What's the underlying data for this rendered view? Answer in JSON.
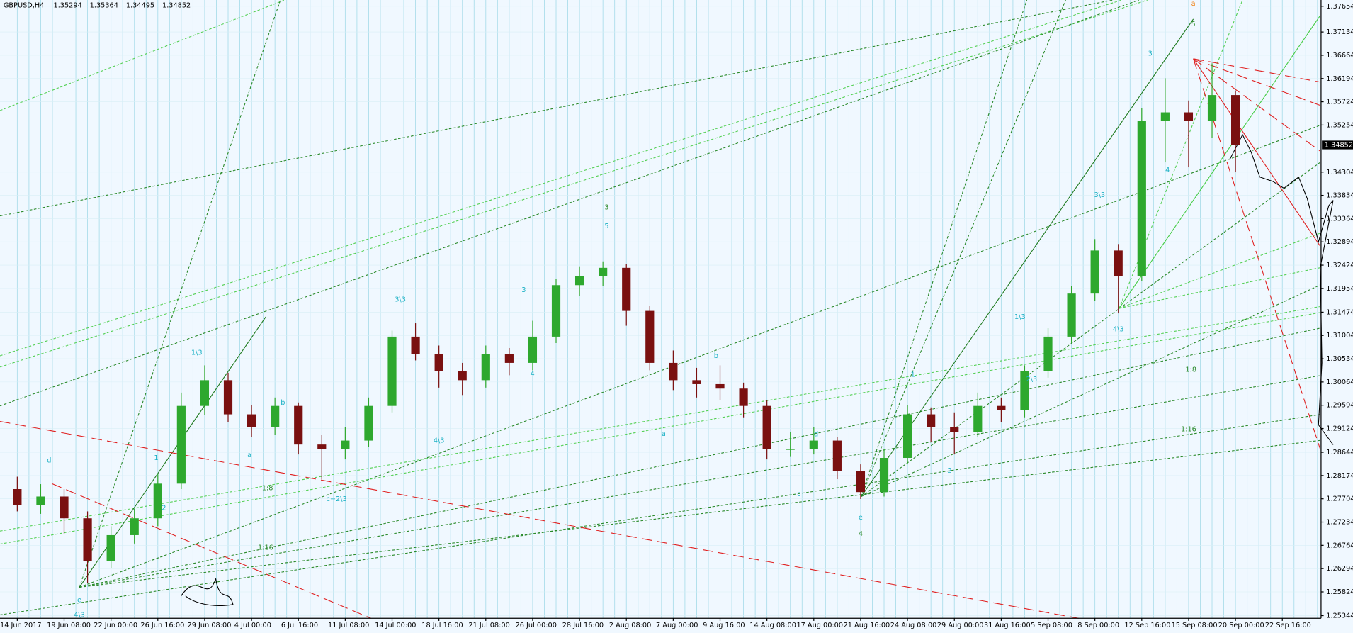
{
  "chart_data": {
    "type": "candlestick",
    "title": "GBPUSD,H4",
    "title_values": [
      1.35294,
      1.35364,
      1.34495,
      1.34852
    ],
    "current_price": 1.34852,
    "up_color": "#2ea82e",
    "down_color": "#7a1010",
    "categories": [
      "14 Jun 2017",
      "19 Jun 08:00",
      "22 Jun 00:00",
      "26 Jun 16:00",
      "29 Jun 08:00",
      "4 Jul 00:00",
      "6 Jul 16:00",
      "11 Jul 08:00",
      "14 Jul 00:00",
      "18 Jul 16:00",
      "21 Jul 08:00",
      "26 Jul 00:00",
      "28 Jul 16:00",
      "2 Aug 08:00",
      "7 Aug 00:00",
      "9 Aug 16:00",
      "14 Aug 08:00",
      "17 Aug 00:00",
      "21 Aug 16:00",
      "24 Aug 08:00",
      "29 Aug 00:00",
      "31 Aug 16:00",
      "5 Sep 08:00",
      "8 Sep 00:00",
      "12 Sep 16:00",
      "15 Sep 08:00",
      "20 Sep 00:00",
      "22 Sep 16:00"
    ],
    "ohlc": [
      [
        1.279,
        1.2815,
        1.2745,
        1.2758
      ],
      [
        1.2758,
        1.28,
        1.274,
        1.2775
      ],
      [
        1.2775,
        1.279,
        1.27,
        1.2731
      ],
      [
        1.2731,
        1.2745,
        1.26,
        1.2644
      ],
      [
        1.2644,
        1.2715,
        1.263,
        1.2697
      ],
      [
        1.2697,
        1.275,
        1.268,
        1.2731
      ],
      [
        1.2731,
        1.282,
        1.2715,
        1.2801
      ],
      [
        1.2801,
        1.2985,
        1.279,
        1.2958
      ],
      [
        1.2958,
        1.304,
        1.294,
        1.301
      ],
      [
        1.301,
        1.3025,
        1.2925,
        1.2941
      ],
      [
        1.2941,
        1.296,
        1.2895,
        1.2915
      ],
      [
        1.2915,
        1.2975,
        1.29,
        1.2958
      ],
      [
        1.2958,
        1.2965,
        1.286,
        1.288
      ],
      [
        1.288,
        1.29,
        1.281,
        1.2871
      ],
      [
        1.2871,
        1.2915,
        1.285,
        1.2888
      ],
      [
        1.2888,
        1.2975,
        1.2875,
        1.2958
      ],
      [
        1.2958,
        1.311,
        1.2945,
        1.3098
      ],
      [
        1.3098,
        1.3125,
        1.305,
        1.3063
      ],
      [
        1.3063,
        1.308,
        1.2995,
        1.3028
      ],
      [
        1.3028,
        1.3045,
        1.298,
        1.301
      ],
      [
        1.301,
        1.308,
        1.2995,
        1.3063
      ],
      [
        1.3063,
        1.3075,
        1.302,
        1.3045
      ],
      [
        1.3045,
        1.313,
        1.303,
        1.3098
      ],
      [
        1.3098,
        1.3215,
        1.3085,
        1.3202
      ],
      [
        1.3202,
        1.324,
        1.318,
        1.322
      ],
      [
        1.322,
        1.325,
        1.32,
        1.3237
      ],
      [
        1.3237,
        1.3245,
        1.312,
        1.315
      ],
      [
        1.315,
        1.316,
        1.303,
        1.3045
      ],
      [
        1.3045,
        1.307,
        1.299,
        1.301
      ],
      [
        1.301,
        1.3035,
        1.2975,
        1.3002
      ],
      [
        1.3002,
        1.304,
        1.297,
        1.2993
      ],
      [
        1.2993,
        1.3005,
        1.2935,
        1.2958
      ],
      [
        1.2958,
        1.297,
        1.285,
        1.2871
      ],
      [
        1.2871,
        1.2905,
        1.2855,
        1.2871
      ],
      [
        1.2871,
        1.2915,
        1.286,
        1.2888
      ],
      [
        1.2888,
        1.2895,
        1.281,
        1.2827
      ],
      [
        1.2827,
        1.284,
        1.277,
        1.2784
      ],
      [
        1.2784,
        1.287,
        1.2775,
        1.2853
      ],
      [
        1.2853,
        1.296,
        1.284,
        1.2941
      ],
      [
        1.2941,
        1.2955,
        1.2885,
        1.2915
      ],
      [
        1.2915,
        1.2945,
        1.286,
        1.2906
      ],
      [
        1.2906,
        1.2985,
        1.2895,
        1.2958
      ],
      [
        1.2958,
        1.2975,
        1.2925,
        1.2949
      ],
      [
        1.2949,
        1.304,
        1.2935,
        1.3028
      ],
      [
        1.3028,
        1.3115,
        1.3015,
        1.3098
      ],
      [
        1.3098,
        1.32,
        1.3085,
        1.3185
      ],
      [
        1.3185,
        1.3295,
        1.317,
        1.3272
      ],
      [
        1.3272,
        1.3285,
        1.3145,
        1.322
      ],
      [
        1.322,
        1.356,
        1.321,
        1.3534
      ],
      [
        1.3534,
        1.362,
        1.345,
        1.3551
      ],
      [
        1.3551,
        1.3575,
        1.344,
        1.3534
      ],
      [
        1.3534,
        1.365,
        1.35,
        1.3586
      ],
      [
        1.3586,
        1.3595,
        1.343,
        1.3485
      ]
    ],
    "ylim": [
      1.2529,
      1.3778
    ],
    "yticks": [
      1.37654,
      1.37134,
      1.36664,
      1.36194,
      1.35724,
      1.35254,
      1.34304,
      1.33834,
      1.33364,
      1.32894,
      1.32424,
      1.31954,
      1.31474,
      1.31004,
      1.30534,
      1.30064,
      1.29594,
      1.29124,
      1.28644,
      1.28174,
      1.27704,
      1.27234,
      1.26764,
      1.26294,
      1.25824,
      1.25344
    ],
    "grid": true,
    "annotations": [
      {
        "text": "4\\3",
        "x": 2.65,
        "y": 1.2536,
        "color": "#19b0c4"
      },
      {
        "text": "e",
        "x": 2.65,
        "y": 1.2566,
        "color": "#19b0c4"
      },
      {
        "text": "d",
        "x": 1.36,
        "y": 1.2848,
        "color": "#19b0c4"
      },
      {
        "text": "1",
        "x": 5.93,
        "y": 1.2853,
        "color": "#19b0c4"
      },
      {
        "text": "2",
        "x": 6.26,
        "y": 1.2752,
        "color": "#19b0c4"
      },
      {
        "text": "1\\3",
        "x": 7.66,
        "y": 1.3066,
        "color": "#19b0c4"
      },
      {
        "text": "a",
        "x": 9.91,
        "y": 1.2859,
        "color": "#19b0c4"
      },
      {
        "text": "b",
        "x": 11.34,
        "y": 1.2965,
        "color": "#19b0c4"
      },
      {
        "text": "c=2\\3",
        "x": 13.63,
        "y": 1.277,
        "color": "#19b0c4"
      },
      {
        "text": "3\\3",
        "x": 16.35,
        "y": 1.3173,
        "color": "#19b0c4"
      },
      {
        "text": "4\\3",
        "x": 18.0,
        "y": 1.2888,
        "color": "#19b0c4"
      },
      {
        "text": "3",
        "x": 21.62,
        "y": 1.3192,
        "color": "#19b0c4"
      },
      {
        "text": "4",
        "x": 21.99,
        "y": 1.3023,
        "color": "#19b0c4"
      },
      {
        "text": "3",
        "x": 25.16,
        "y": 1.3359,
        "color": "#2e8b2e"
      },
      {
        "text": "5",
        "x": 25.16,
        "y": 1.3321,
        "color": "#19b0c4"
      },
      {
        "text": "a",
        "x": 27.59,
        "y": 1.2902,
        "color": "#19b0c4"
      },
      {
        "text": "b",
        "x": 29.83,
        "y": 1.3059,
        "color": "#19b0c4"
      },
      {
        "text": "c",
        "x": 33.37,
        "y": 1.278,
        "color": "#19b0c4"
      },
      {
        "text": "d",
        "x": 34.1,
        "y": 1.2901,
        "color": "#19b0c4"
      },
      {
        "text": "e",
        "x": 36.0,
        "y": 1.2733,
        "color": "#19b0c4"
      },
      {
        "text": "4",
        "x": 36.0,
        "y": 1.27,
        "color": "#2e8b2e"
      },
      {
        "text": "1",
        "x": 38.23,
        "y": 1.3021,
        "color": "#19b0c4"
      },
      {
        "text": "2",
        "x": 39.8,
        "y": 1.2827,
        "color": "#19b0c4"
      },
      {
        "text": "1\\3",
        "x": 42.8,
        "y": 1.3138,
        "color": "#19b0c4"
      },
      {
        "text": "2\\3",
        "x": 43.3,
        "y": 1.3012,
        "color": "#19b0c4"
      },
      {
        "text": "3\\3",
        "x": 46.2,
        "y": 1.3384,
        "color": "#19b0c4"
      },
      {
        "text": "4\\3",
        "x": 47.0,
        "y": 1.3113,
        "color": "#19b0c4"
      },
      {
        "text": "3",
        "x": 48.36,
        "y": 1.367,
        "color": "#19b0c4"
      },
      {
        "text": "4",
        "x": 49.1,
        "y": 1.3434,
        "color": "#19b0c4"
      },
      {
        "text": "5",
        "x": 50.2,
        "y": 1.3729,
        "color": "#2e8b2e"
      },
      {
        "text": "a",
        "x": 50.2,
        "y": 1.3771,
        "color": "#f08010"
      },
      {
        "text": "1:8",
        "x": 10.68,
        "y": 1.2792,
        "color": "#2a8a2a"
      },
      {
        "text": "1:16",
        "x": 10.6,
        "y": 1.2672,
        "color": "#2a8a2a"
      },
      {
        "text": "1:8",
        "x": 50.1,
        "y": 1.3031,
        "color": "#2a8a2a"
      },
      {
        "text": "1:16",
        "x": 50.0,
        "y": 1.2911,
        "color": "#2a8a2a"
      }
    ]
  }
}
